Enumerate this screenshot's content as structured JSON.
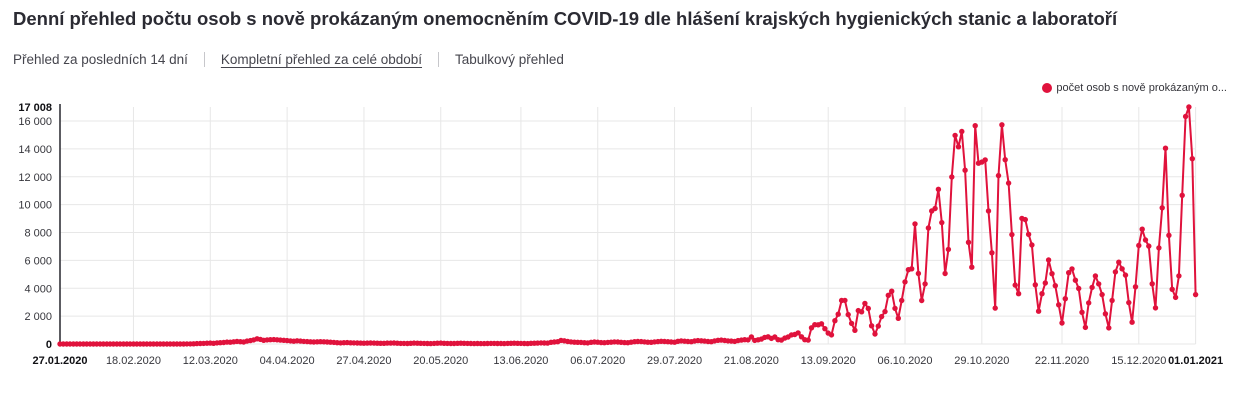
{
  "title": "Denní přehled počtu osob s nově prokázaným onemocněním COVID-19 dle hlášení krajských hygienických stanic a laboratoří",
  "tabs": [
    {
      "label": "Přehled za posledních 14 dní",
      "active": false
    },
    {
      "label": "Kompletní přehled za celé období",
      "active": true
    },
    {
      "label": "Tabulkový přehled",
      "active": false
    }
  ],
  "colors": {
    "series": "#e0123c",
    "grid": "#e7e7e7",
    "axis": "#33333a",
    "label": "#36363c",
    "label_strong": "#101014"
  },
  "chart_data": {
    "type": "line",
    "legend": "počet osob s nově prokázaným o...",
    "x_unit": "day",
    "x_start": "27.01.2020",
    "x_end": "01.01.2021",
    "y_axis_max": {
      "value": 17008,
      "label": "17 008",
      "bold": true,
      "gridline": false
    },
    "y_ticks": [
      {
        "value": 0,
        "label": "0",
        "bold": true
      },
      {
        "value": 2000,
        "label": "2 000"
      },
      {
        "value": 4000,
        "label": "4 000"
      },
      {
        "value": 6000,
        "label": "6 000"
      },
      {
        "value": 8000,
        "label": "8 000"
      },
      {
        "value": 10000,
        "label": "10 000"
      },
      {
        "value": 12000,
        "label": "12 000"
      },
      {
        "value": 14000,
        "label": "14 000"
      },
      {
        "value": 16000,
        "label": "16 000"
      }
    ],
    "x_ticks": [
      {
        "day": 0,
        "label": "27.01.2020",
        "bold": true
      },
      {
        "day": 22,
        "label": "18.02.2020"
      },
      {
        "day": 45,
        "label": "12.03.2020"
      },
      {
        "day": 68,
        "label": "04.04.2020"
      },
      {
        "day": 91,
        "label": "27.04.2020"
      },
      {
        "day": 114,
        "label": "20.05.2020"
      },
      {
        "day": 138,
        "label": "13.06.2020"
      },
      {
        "day": 161,
        "label": "06.07.2020"
      },
      {
        "day": 184,
        "label": "29.07.2020"
      },
      {
        "day": 207,
        "label": "21.08.2020"
      },
      {
        "day": 230,
        "label": "13.09.2020"
      },
      {
        "day": 253,
        "label": "06.10.2020"
      },
      {
        "day": 276,
        "label": "29.10.2020"
      },
      {
        "day": 300,
        "label": "22.11.2020"
      },
      {
        "day": 323,
        "label": "15.12.2020"
      },
      {
        "day": 340,
        "label": "01.01.2021",
        "bold": true
      }
    ],
    "values": [
      0,
      0,
      0,
      0,
      0,
      0,
      0,
      0,
      0,
      0,
      0,
      0,
      0,
      0,
      0,
      0,
      0,
      0,
      0,
      0,
      0,
      0,
      0,
      0,
      0,
      0,
      0,
      0,
      0,
      0,
      0,
      0,
      0,
      0,
      3,
      0,
      2,
      1,
      5,
      8,
      12,
      26,
      33,
      42,
      55,
      67,
      52,
      78,
      92,
      106,
      135,
      128,
      158,
      186,
      166,
      142,
      210,
      245,
      291,
      373,
      330,
      262,
      291,
      305,
      316,
      303,
      281,
      262,
      243,
      224,
      198,
      232,
      210,
      190,
      172,
      161,
      142,
      155,
      168,
      158,
      141,
      129,
      112,
      93,
      76,
      96,
      104,
      89,
      81,
      72,
      63,
      55,
      66,
      71,
      61,
      56,
      51,
      48,
      61,
      66,
      70,
      55,
      46,
      41,
      38,
      52,
      63,
      57,
      49,
      42,
      35,
      31,
      46,
      55,
      61,
      52,
      45,
      38,
      33,
      48,
      57,
      51,
      43,
      37,
      31,
      36,
      31,
      29,
      36,
      41,
      46,
      39,
      33,
      31,
      43,
      52,
      56,
      49,
      41,
      36,
      32,
      47,
      57,
      66,
      79,
      72,
      62,
      123,
      142,
      163,
      260,
      232,
      182,
      152,
      132,
      122,
      112,
      92,
      82,
      121,
      142,
      132,
      102,
      93,
      112,
      132,
      151,
      142,
      122,
      103,
      96,
      132,
      162,
      182,
      172,
      152,
      132,
      121,
      152,
      172,
      192,
      182,
      163,
      143,
      132,
      192,
      222,
      202,
      182,
      163,
      212,
      242,
      232,
      205,
      182,
      163,
      222,
      262,
      282,
      252,
      222,
      205,
      185,
      242,
      282,
      312,
      292,
      506,
      260,
      301,
      352,
      471,
      520,
      400,
      503,
      310,
      283,
      420,
      499,
      650,
      680,
      798,
      520,
      310,
      280,
      1164,
      1382,
      1378,
      1447,
      1096,
      780,
      650,
      1675,
      2139,
      3123,
      3130,
      2111,
      1476,
      985,
      2394,
      2309,
      2913,
      2547,
      1305,
      717,
      1287,
      1965,
      2323,
      3493,
      3792,
      2553,
      1844,
      3120,
      4457,
      5335,
      5394,
      8618,
      5059,
      3120,
      4310,
      8325,
      9544,
      9721,
      11105,
      8713,
      5057,
      6790,
      11984,
      14969,
      14151,
      15252,
      12474,
      7301,
      5513,
      15663,
      12977,
      13051,
      13212,
      9542,
      6542,
      2574,
      12088,
      15729,
      13223,
      11547,
      7848,
      4228,
      3608,
      9016,
      8925,
      7874,
      7105,
      4249,
      2353,
      3608,
      4378,
      6031,
      5047,
      4186,
      2812,
      1509,
      3254,
      5117,
      5393,
      4582,
      3982,
      2276,
      1193,
      2953,
      4059,
      4883,
      4310,
      3546,
      2166,
      1157,
      3123,
      5176,
      5867,
      5394,
      4947,
      2973,
      1561,
      4102,
      7070,
      8235,
      7465,
      7028,
      4317,
      2591,
      6900,
      9775,
      14054,
      7800,
      3928,
      3343,
      4887,
      10674,
      16329,
      17008,
      13300,
      3547
    ]
  }
}
